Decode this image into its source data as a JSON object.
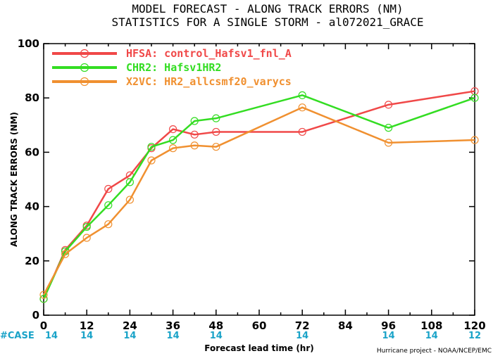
{
  "title_line1": "MODEL FORECAST - ALONG TRACK ERRORS (NM)",
  "title_line2": "STATISTICS FOR A SINGLE STORM - al072021_GRACE",
  "case_label": "#CASE",
  "credit": "Hurricane project - NOAA/NCEP/EMC",
  "chart_data": {
    "type": "line",
    "xlabel": "Forecast lead time (hr)",
    "ylabel": "ALONG TRACK ERRORS (NM)",
    "xlim": [
      0,
      120
    ],
    "ylim": [
      0,
      100
    ],
    "x_ticks": [
      "0",
      "12",
      "24",
      "36",
      "48",
      "60",
      "72",
      "84",
      "96",
      "108",
      "120"
    ],
    "y_ticks": [
      "0",
      "20",
      "40",
      "60",
      "80",
      "100"
    ],
    "grid": false,
    "legend_position": "top-left",
    "case_x": [
      0,
      12,
      24,
      36,
      48,
      72,
      96,
      108,
      120
    ],
    "case_counts": [
      "14",
      "14",
      "14",
      "14",
      "14",
      "14",
      "14",
      "14",
      "12"
    ],
    "series": [
      {
        "name": "HFSA: control_Hafsv1_fnl_A",
        "color": "#f04848",
        "x": [
          0,
          6,
          12,
          18,
          24,
          30,
          36,
          42,
          48,
          72,
          96,
          120
        ],
        "y": [
          6.0,
          24.0,
          33.0,
          46.5,
          51.5,
          61.5,
          68.5,
          66.5,
          67.5,
          67.5,
          77.5,
          82.5
        ]
      },
      {
        "name": "CHR2: Hafsv1HR2",
        "color": "#33dd22",
        "x": [
          0,
          6,
          12,
          18,
          24,
          30,
          36,
          42,
          48,
          72,
          96,
          120
        ],
        "y": [
          6.0,
          23.5,
          32.5,
          40.5,
          49.0,
          62.0,
          64.5,
          71.5,
          72.5,
          81.0,
          69.0,
          80.0
        ]
      },
      {
        "name": "X2VC: HR2_allcsmf20_varycs",
        "color": "#f09030",
        "x": [
          0,
          6,
          12,
          18,
          24,
          30,
          36,
          42,
          48,
          72,
          96,
          120
        ],
        "y": [
          7.5,
          22.5,
          28.5,
          33.5,
          42.5,
          57.0,
          61.5,
          62.5,
          62.0,
          76.5,
          63.5,
          64.5
        ]
      }
    ]
  }
}
